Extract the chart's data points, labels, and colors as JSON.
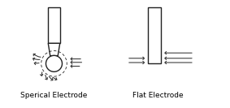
{
  "bg_color": "white",
  "line_color": "#222222",
  "arrow_color": "#333333",
  "label_left": "Sperical Electrode",
  "label_right": "Flat Electrode",
  "label_fontsize": 6.5,
  "fig_width": 2.83,
  "fig_height": 1.33,
  "dpi": 100
}
